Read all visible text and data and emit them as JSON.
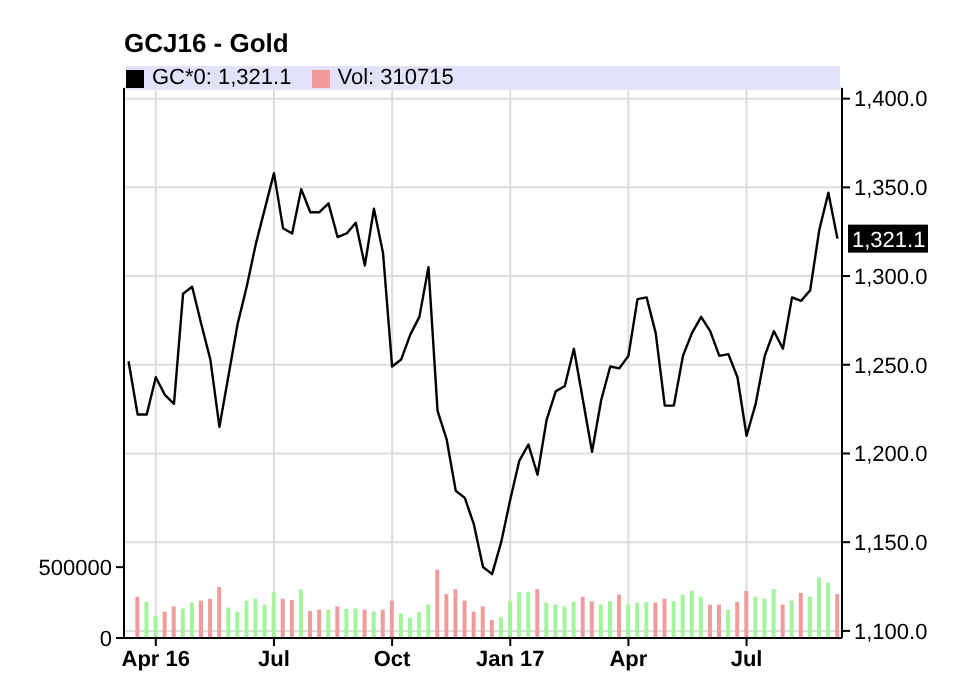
{
  "chart_data": {
    "type": "line",
    "title": "GCJ16 - Gold",
    "categories": [
      null,
      null,
      null,
      "Apr 16",
      null,
      null,
      null,
      null,
      null,
      null,
      null,
      null,
      null,
      null,
      null,
      null,
      "Jul",
      null,
      null,
      null,
      null,
      null,
      null,
      null,
      null,
      null,
      null,
      null,
      null,
      "Oct",
      null,
      null,
      null,
      null,
      null,
      null,
      null,
      null,
      null,
      null,
      null,
      null,
      "Jan 17",
      null,
      null,
      null,
      null,
      null,
      null,
      null,
      null,
      null,
      null,
      null,
      null,
      "Apr",
      null,
      null,
      null,
      null,
      null,
      null,
      null,
      null,
      null,
      null,
      null,
      null,
      "Jul",
      null,
      null,
      null,
      null,
      null,
      null,
      null,
      null,
      null,
      null
    ],
    "series": [
      {
        "name": "GC*0: 1,321.1",
        "axis": "y2",
        "color": "#000000",
        "values": [
          1252,
          1222,
          1222,
          1243,
          1233,
          1228,
          1290,
          1294,
          1273,
          1253,
          1215,
          1244,
          1273,
          1294,
          1318,
          1338,
          1358,
          1327,
          1324,
          1349,
          1336,
          1336,
          1341,
          1322,
          1324,
          1330,
          1306,
          1338,
          1313,
          1249,
          1253,
          1267,
          1277,
          1305,
          1224,
          1208,
          1179,
          1175,
          1160,
          1136,
          1132,
          1150,
          1174,
          1196,
          1205,
          1188,
          1219,
          1235,
          1238,
          1259,
          1230,
          1201,
          1230,
          1249,
          1248,
          1255,
          1287,
          1288,
          1268,
          1227,
          1227,
          1255,
          1268,
          1277,
          1269,
          1255,
          1256,
          1243,
          1210,
          1228,
          1255,
          1269,
          1259,
          1288,
          1286,
          1292,
          1326,
          1347,
          1321.1
        ]
      },
      {
        "name": "Vol: 310715",
        "type": "bar",
        "axis": "y",
        "color": "#f09c9c",
        "values": [
          null,
          291000,
          255000,
          155000,
          186000,
          223000,
          209000,
          250000,
          264000,
          277000,
          359000,
          214000,
          186000,
          264000,
          277000,
          236000,
          323000,
          277000,
          268000,
          345000,
          191000,
          200000,
          200000,
          223000,
          205000,
          209000,
          200000,
          186000,
          200000,
          264000,
          173000,
          145000,
          182000,
          236000,
          482000,
          309000,
          345000,
          264000,
          186000,
          223000,
          127000,
          145000,
          264000,
          323000,
          323000,
          345000,
          250000,
          236000,
          223000,
          255000,
          291000,
          259000,
          236000,
          259000,
          305000,
          236000,
          250000,
          255000,
          250000,
          277000,
          259000,
          305000,
          332000,
          291000,
          236000,
          236000,
          200000,
          255000,
          332000,
          291000,
          277000,
          345000,
          236000,
          264000,
          318000,
          291000,
          427000,
          391000,
          310715
        ],
        "colors": [
          null,
          "#f09c9c",
          "#a4f49c",
          "#a4f49c",
          "#f09c9c",
          "#f09c9c",
          "#a4f49c",
          "#a4f49c",
          "#f09c9c",
          "#f09c9c",
          "#f09c9c",
          "#a4f49c",
          "#a4f49c",
          "#a4f49c",
          "#a4f49c",
          "#a4f49c",
          "#a4f49c",
          "#f09c9c",
          "#f09c9c",
          "#a4f49c",
          "#f09c9c",
          "#f09c9c",
          "#a4f49c",
          "#f09c9c",
          "#a4f49c",
          "#a4f49c",
          "#f09c9c",
          "#a4f49c",
          "#f09c9c",
          "#f09c9c",
          "#a4f49c",
          "#a4f49c",
          "#a4f49c",
          "#a4f49c",
          "#f09c9c",
          "#f09c9c",
          "#f09c9c",
          "#f09c9c",
          "#f09c9c",
          "#f09c9c",
          "#f09c9c",
          "#a4f49c",
          "#a4f49c",
          "#a4f49c",
          "#a4f49c",
          "#f09c9c",
          "#a4f49c",
          "#a4f49c",
          "#a4f49c",
          "#a4f49c",
          "#f09c9c",
          "#f09c9c",
          "#a4f49c",
          "#a4f49c",
          "#f09c9c",
          "#a4f49c",
          "#a4f49c",
          "#a4f49c",
          "#f09c9c",
          "#f09c9c",
          "#a4f49c",
          "#a4f49c",
          "#a4f49c",
          "#a4f49c",
          "#f09c9c",
          "#f09c9c",
          "#a4f49c",
          "#f09c9c",
          "#f09c9c",
          "#a4f49c",
          "#a4f49c",
          "#a4f49c",
          "#f09c9c",
          "#a4f49c",
          "#f09c9c",
          "#a4f49c",
          "#a4f49c",
          "#a4f49c",
          "#f09c9c"
        ]
      }
    ],
    "ylim": [
      0,
      3880000
    ],
    "yticks": [
      0,
      500000
    ],
    "y2lim": [
      1096,
      1406
    ],
    "y2ticks": [
      {
        "value": 1100,
        "label": "1,100.0"
      },
      {
        "value": 1150,
        "label": "1,150.0"
      },
      {
        "value": 1200,
        "label": "1,200.0"
      },
      {
        "value": 1250,
        "label": "1,250.0"
      },
      {
        "value": 1300,
        "label": "1,300.0"
      },
      {
        "value": 1350,
        "label": "1,350.0"
      },
      {
        "value": 1400,
        "label": "1,400.0"
      }
    ],
    "annotations": [
      "1,321.1"
    ],
    "grid": true,
    "legend": "top left",
    "marker": "none",
    "line_style": "solid"
  }
}
